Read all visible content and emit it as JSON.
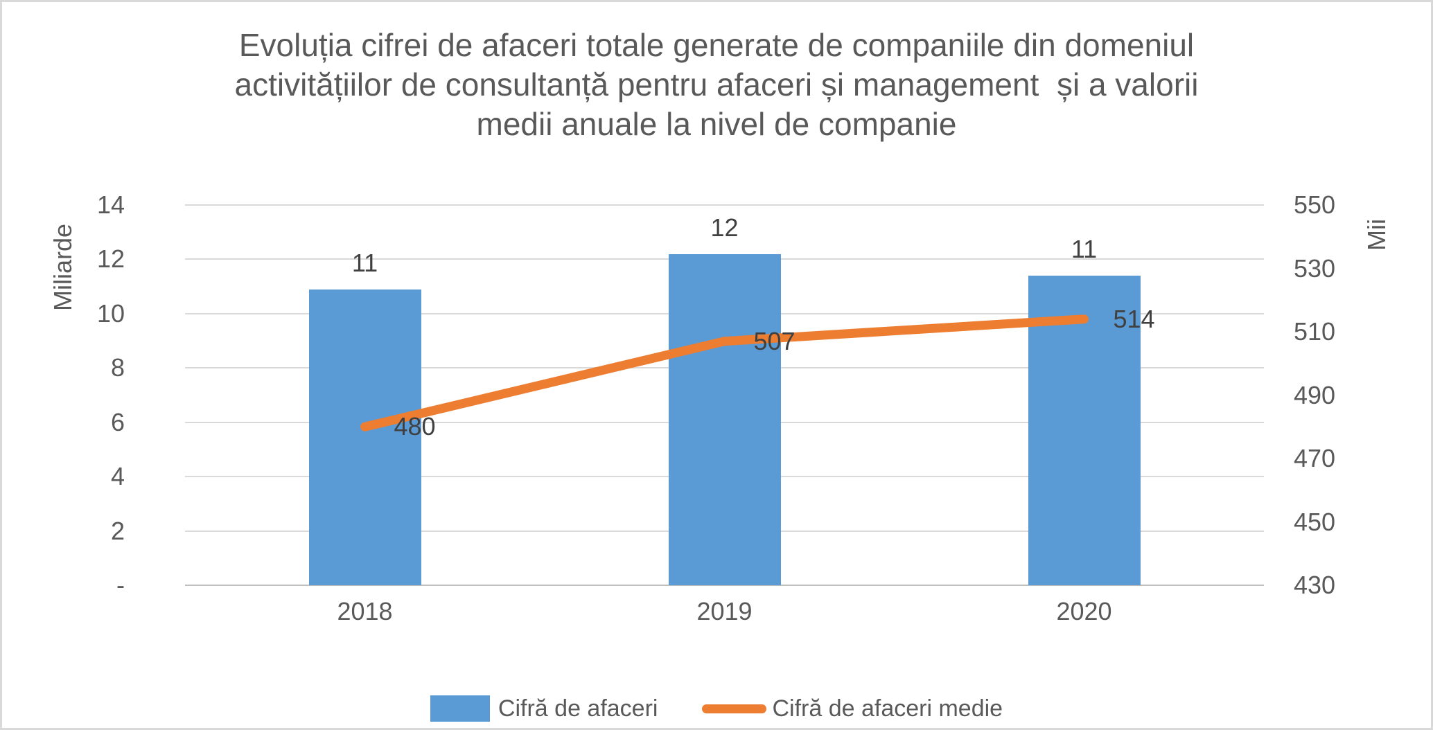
{
  "chart_data": {
    "type": "combo-bar-line",
    "title": "Evoluția cifrei de afaceri totale generate de companiile din domeniul activitățiilor de consultanță pentru afaceri și management  și a valorii medii anuale la nivel de companie",
    "title_lines": [
      "Evoluția cifrei de afaceri totale generate de companiile din domeniul",
      "activitățiilor de consultanță pentru afaceri și management  și a valorii",
      "medii anuale la nivel de companie"
    ],
    "categories": [
      "2018",
      "2019",
      "2020"
    ],
    "series": [
      {
        "name": "Cifră de afaceri",
        "type": "bar",
        "axis": "left",
        "values": [
          10.9,
          12.2,
          11.4
        ],
        "labels": [
          "11",
          "12",
          "11"
        ],
        "color": "#5b9bd5"
      },
      {
        "name": "Cifră de afaceri medie",
        "type": "line",
        "axis": "right",
        "values": [
          480,
          507,
          514
        ],
        "labels": [
          "480",
          "507",
          "514"
        ],
        "color": "#ed7d31"
      }
    ],
    "left_axis": {
      "title": "Miliarde",
      "min": 0,
      "max": 14,
      "tick_values": [
        14,
        12,
        10,
        8,
        6,
        4,
        2,
        0
      ],
      "tick_labels": [
        "14",
        "12",
        "10",
        "8",
        "6",
        "4",
        "2",
        "-"
      ]
    },
    "right_axis": {
      "title": "Mii",
      "min": 430,
      "max": 550,
      "tick_values": [
        550,
        530,
        510,
        490,
        470,
        450,
        430
      ],
      "tick_labels": [
        "550",
        "530",
        "510",
        "490",
        "470",
        "450",
        "430"
      ]
    },
    "grid": true,
    "legend_position": "bottom"
  },
  "legend": {
    "items": [
      {
        "label": "Cifră de afaceri",
        "swatch": "bar",
        "color": "#5b9bd5"
      },
      {
        "label": "Cifră de afaceri medie",
        "swatch": "line",
        "color": "#ed7d31"
      }
    ]
  },
  "colors": {
    "bar": "#5b9bd5",
    "line": "#ed7d31",
    "gridline": "#d9d9d9",
    "axis_line": "#bfbfbf",
    "text": "#595959",
    "data_label": "#404040",
    "border": "#d9d9d9"
  }
}
